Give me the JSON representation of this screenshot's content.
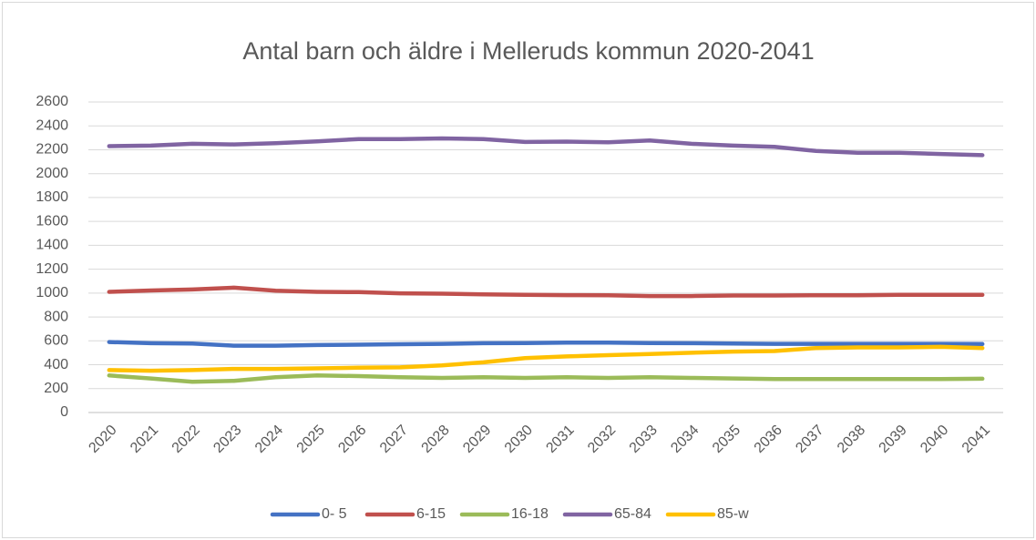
{
  "chart_data": {
    "type": "line",
    "title": "Antal barn och äldre i Melleruds kommun 2020-2041",
    "categories": [
      "2020",
      "2021",
      "2022",
      "2023",
      "2024",
      "2025",
      "2026",
      "2027",
      "2028",
      "2029",
      "2030",
      "2031",
      "2032",
      "2033",
      "2034",
      "2035",
      "2036",
      "2037",
      "2038",
      "2039",
      "2040",
      "2041"
    ],
    "series": [
      {
        "name": "0- 5",
        "color": "#4472c4",
        "values": [
          590,
          580,
          578,
          560,
          560,
          565,
          568,
          572,
          575,
          580,
          582,
          585,
          585,
          582,
          580,
          578,
          575,
          575,
          575,
          575,
          575,
          573
        ]
      },
      {
        "name": "6-15",
        "color": "#c0504d",
        "values": [
          1010,
          1022,
          1030,
          1045,
          1020,
          1010,
          1008,
          998,
          995,
          990,
          985,
          983,
          982,
          975,
          975,
          980,
          980,
          982,
          982,
          985,
          985,
          985
        ]
      },
      {
        "name": "16-18",
        "color": "#9bbb59",
        "values": [
          310,
          285,
          258,
          265,
          295,
          310,
          305,
          295,
          290,
          295,
          290,
          295,
          290,
          295,
          290,
          285,
          280,
          280,
          280,
          280,
          280,
          283
        ]
      },
      {
        "name": "65-84",
        "color": "#8064a2",
        "values": [
          2230,
          2235,
          2250,
          2245,
          2255,
          2270,
          2290,
          2290,
          2295,
          2290,
          2265,
          2268,
          2262,
          2278,
          2250,
          2235,
          2225,
          2190,
          2175,
          2175,
          2165,
          2155
        ]
      },
      {
        "name": "85-w",
        "color": "#ffc000",
        "values": [
          355,
          350,
          355,
          365,
          365,
          370,
          375,
          378,
          395,
          420,
          455,
          470,
          480,
          490,
          500,
          510,
          515,
          540,
          545,
          545,
          550,
          540
        ]
      }
    ],
    "ylim": [
      0,
      2600
    ],
    "yticks": [
      0,
      200,
      400,
      600,
      800,
      1000,
      1200,
      1400,
      1600,
      1800,
      2000,
      2200,
      2400,
      2600
    ],
    "grid": true,
    "legend": "bottom"
  }
}
